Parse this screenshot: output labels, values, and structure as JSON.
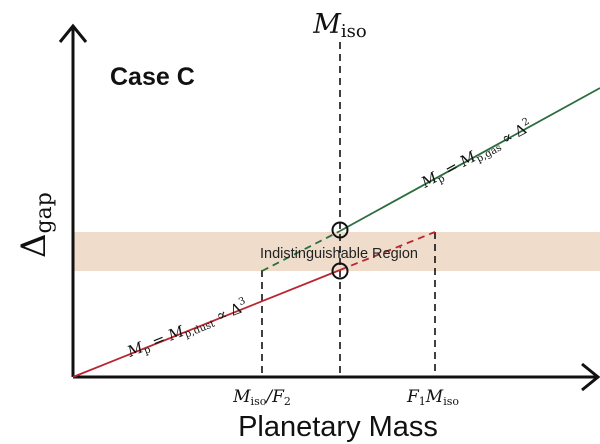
{
  "panel_label": "Case C",
  "axes": {
    "x_label": "Planetary Mass",
    "y_label": {
      "main": "Δ",
      "sub": "gap"
    }
  },
  "marker_top": {
    "main": "M",
    "sub": "iso"
  },
  "x_ticks": [
    {
      "main": "M",
      "sub": "iso",
      "suffix": "/F",
      "suffix_sub": "2"
    },
    {
      "prefix": "F",
      "prefix_sub": "1",
      "main": "M",
      "sub": "iso"
    }
  ],
  "region": {
    "label": "Indistinguishable Region",
    "color": "#efdccb"
  },
  "lines": {
    "gas": {
      "color": "#2d6e3e",
      "parts": {
        "a": "M",
        "a_sub": "p",
        "eq": " = ",
        "b": "M",
        "b_sub": "p,gas",
        "prop": " ∝ ",
        "c": "Δ",
        "c_sup": "2"
      }
    },
    "dust": {
      "color": "#b82630",
      "parts": {
        "a": "M",
        "a_sub": "p",
        "eq": " = ",
        "b": "M",
        "b_sub": "p,dust",
        "prop": " ∝ ",
        "c": "Δ",
        "c_sup": "3"
      }
    }
  }
}
